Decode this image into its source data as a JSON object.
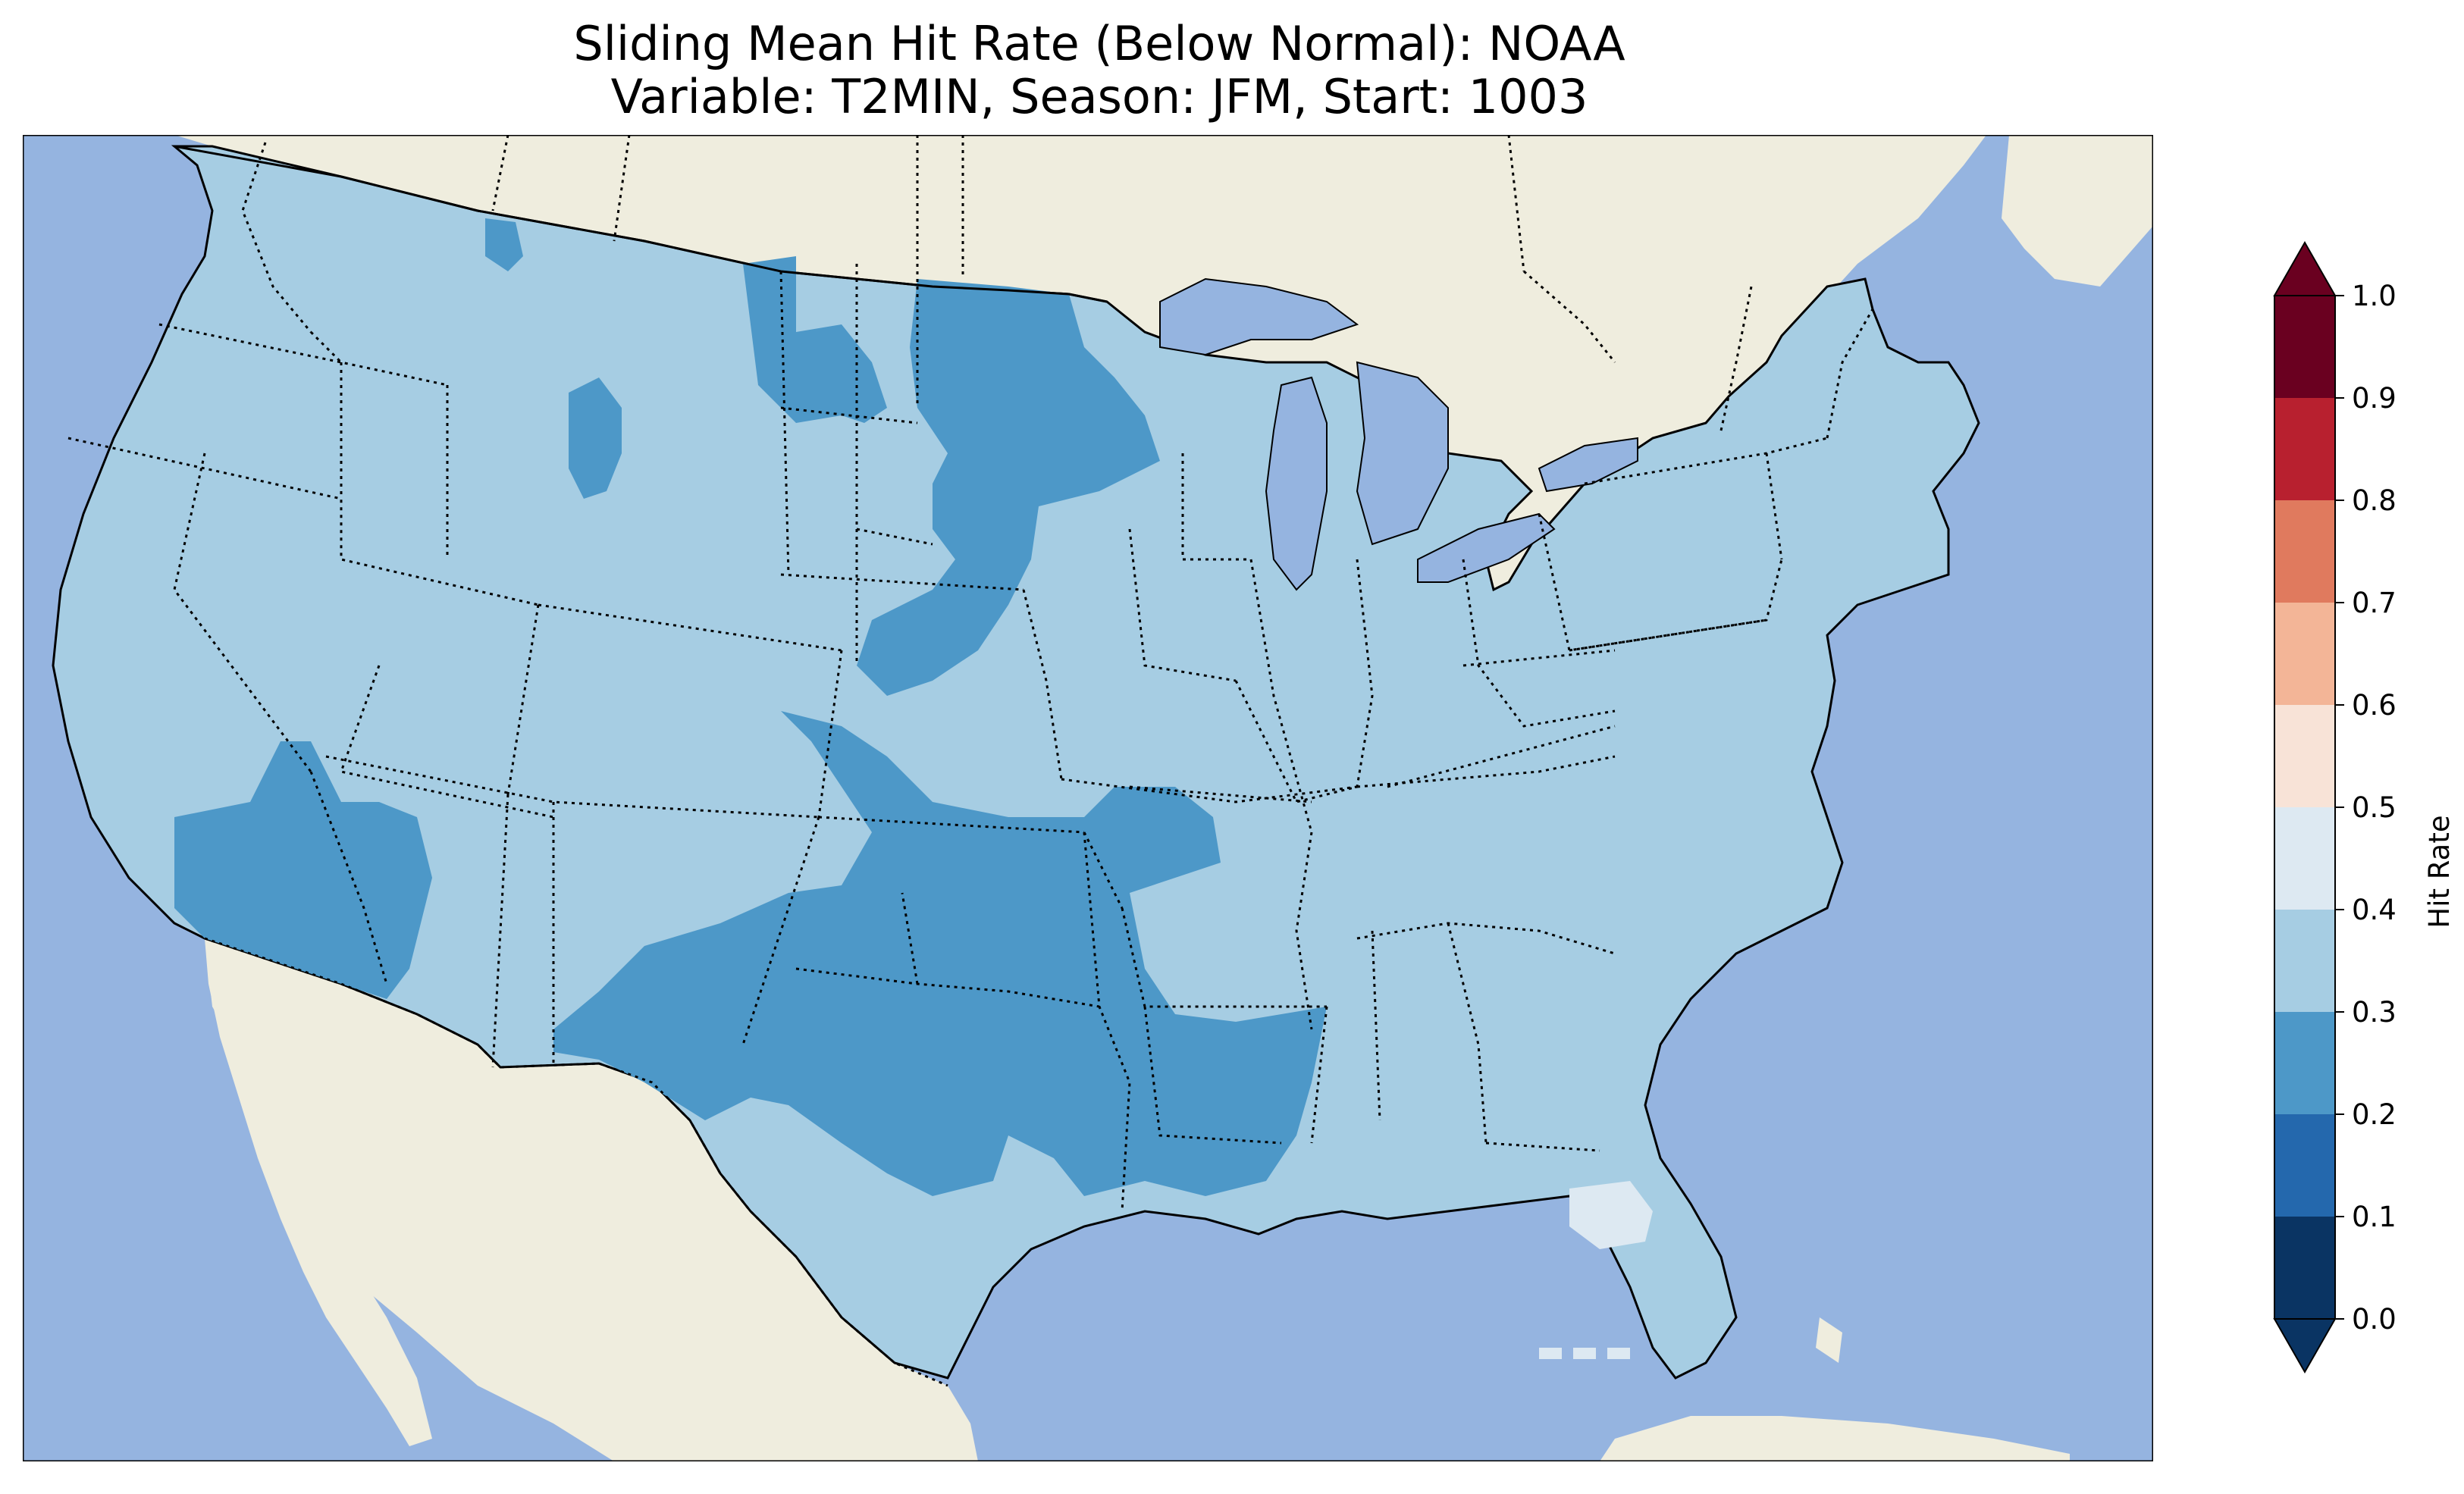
{
  "title": {
    "line1": "Sliding Mean Hit Rate (Below Normal): NOAA",
    "line2": "Variable: T2MIN, Season: JFM, Start: 1003"
  },
  "colors": {
    "ocean": "#95b4e0",
    "land": "#efedde",
    "level_0_1": "#0a3463",
    "level_1_2": "#2468ad",
    "level_2_3": "#4d98c8",
    "level_3_4": "#a6cde3",
    "level_4_5": "#dde9f2",
    "level_5_6": "#f8e3d7",
    "level_6_7": "#f3b597",
    "level_7_8": "#e07a5e",
    "level_8_9": "#b8202f",
    "level_9_10": "#6a0020"
  },
  "colorbar": {
    "label": "Hit Rate",
    "ticks": [
      "0.0",
      "0.1",
      "0.2",
      "0.3",
      "0.4",
      "0.5",
      "0.6",
      "0.7",
      "0.8",
      "0.9",
      "1.0"
    ],
    "extend": "both"
  },
  "map_data": {
    "region": "Contiguous United States",
    "dominant_level": "0.3-0.4",
    "secondary_level": "0.2-0.3",
    "minor_level": "0.4-0.5"
  }
}
